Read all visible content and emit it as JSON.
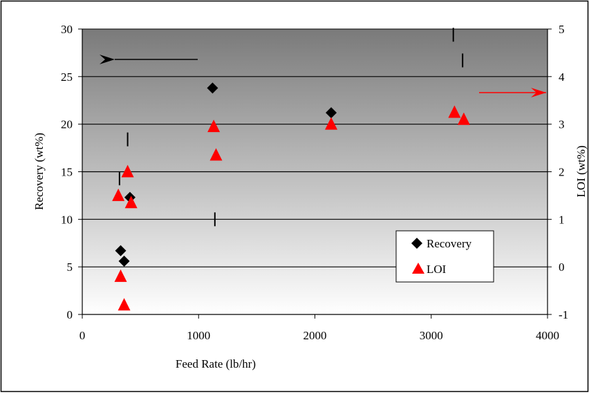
{
  "chart_data": {
    "type": "scatter",
    "title": "",
    "xlabel": "Feed Rate (lb/hr)",
    "ylabel": "Recovery (wt%)",
    "y2label": "LOI (wt%)",
    "xlim": [
      0,
      4000
    ],
    "ylim": [
      0,
      30
    ],
    "y2lim": [
      -1,
      5
    ],
    "x_ticks": [
      0,
      1000,
      2000,
      3000,
      4000
    ],
    "y_ticks": [
      0,
      5,
      10,
      15,
      20,
      25,
      30
    ],
    "y2_ticks": [
      "-1",
      "0",
      "1",
      "2",
      "3",
      "4",
      "5"
    ],
    "grid": "horizontal",
    "legend_position": "lower-right",
    "series": [
      {
        "name": "Recovery",
        "axis": "left",
        "marker": "diamond",
        "color": "#000000",
        "points": [
          {
            "x": 330,
            "y": 6.7
          },
          {
            "x": 360,
            "y": 5.6
          },
          {
            "x": 410,
            "y": 12.3
          },
          {
            "x": 1120,
            "y": 23.8
          },
          {
            "x": 2140,
            "y": 21.2
          }
        ]
      },
      {
        "name": "LOI",
        "axis": "right",
        "marker": "triangle",
        "color": "#ff0000",
        "points": [
          {
            "x": 310,
            "y": 1.5
          },
          {
            "x": 330,
            "y": -0.2
          },
          {
            "x": 360,
            "y": -0.8
          },
          {
            "x": 390,
            "y": 2.0
          },
          {
            "x": 420,
            "y": 1.35
          },
          {
            "x": 1130,
            "y": 2.95
          },
          {
            "x": 1150,
            "y": 2.35
          },
          {
            "x": 2140,
            "y": 3.0
          },
          {
            "x": 3200,
            "y": 3.25
          },
          {
            "x": 3280,
            "y": 3.1
          }
        ]
      }
    ],
    "error_ticks": [
      {
        "x": 320,
        "y": 14.3
      },
      {
        "x": 390,
        "y": 18.4
      },
      {
        "x": 1140,
        "y": 10.0
      },
      {
        "x": 3190,
        "y": 29.4
      },
      {
        "x": 3270,
        "y": 26.7
      }
    ],
    "arrows": [
      {
        "target": "left-axis",
        "color": "#000000"
      },
      {
        "target": "right-axis",
        "color": "#ff0000"
      }
    ],
    "colors": {
      "plot_top": "#7a7a7a",
      "plot_bottom": "#ffffff",
      "recovery": "#000000",
      "loi": "#ff0000"
    }
  }
}
